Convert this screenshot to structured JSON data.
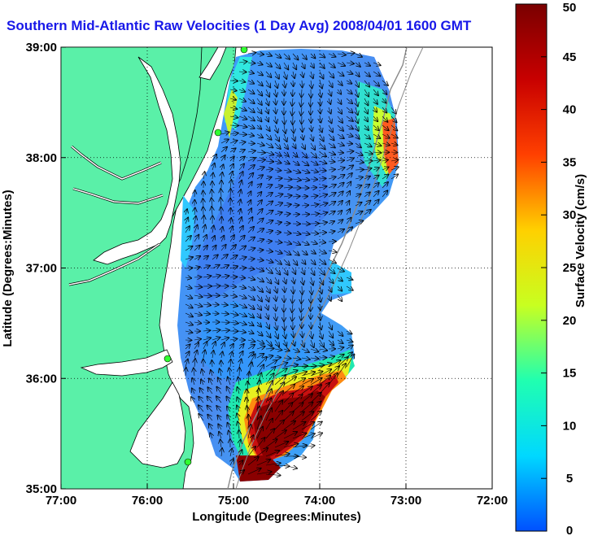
{
  "title": "Southern Mid-Atlantic Raw Velocities (1 Day Avg) 2008/04/01 1600 GMT",
  "map": {
    "xlabel": "Longitude (Degrees:Minutes)",
    "ylabel": "Latitude (Degrees:Minutes)",
    "x_ticks": [
      "77:00",
      "76:00",
      "75:00",
      "74:00",
      "73:00",
      "72:00"
    ],
    "y_ticks": [
      "39:00",
      "38:00",
      "37:00",
      "36:00",
      "35:00"
    ],
    "lon_range": [
      -77,
      -72
    ],
    "lat_range": [
      35,
      39
    ],
    "land_color": "#5af0a8",
    "grid": "dotted"
  },
  "colorbar": {
    "label": "Surface Velocity (cm/s)",
    "ticks": [
      "50",
      "45",
      "40",
      "35",
      "30",
      "25",
      "20",
      "15",
      "10",
      "5",
      "0"
    ],
    "range": [
      0,
      50
    ],
    "colors_low_to_high": [
      "#0050ff",
      "#00d8ff",
      "#20ffb0",
      "#c8ff20",
      "#ffd000",
      "#ff4000",
      "#c80000",
      "#7a0000"
    ]
  },
  "stations": {
    "color": "#30ff30"
  }
}
